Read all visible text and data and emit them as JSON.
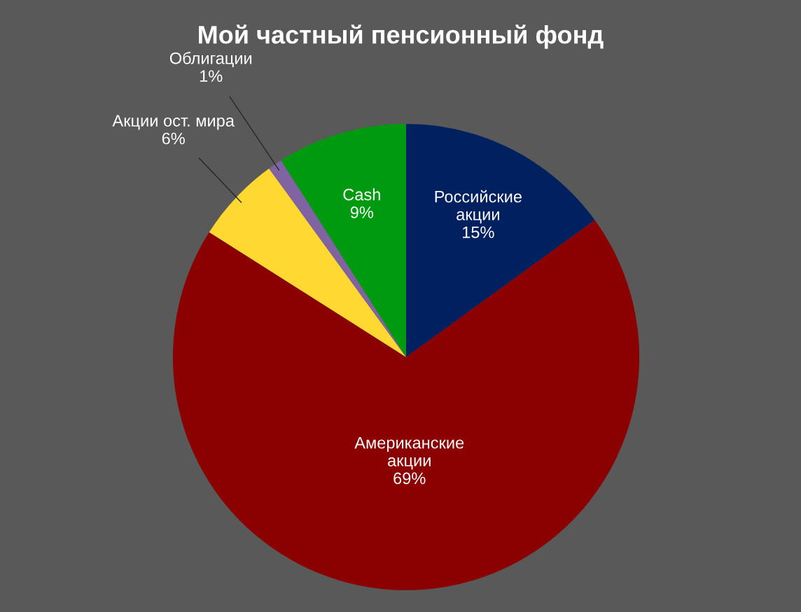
{
  "chart_data": {
    "type": "pie",
    "title": "Мой частный пенсионный фонд",
    "categories": [
      "Российские акции",
      "Американские акции",
      "Акции ост. мира",
      "Облигации",
      "Cash"
    ],
    "values": [
      15,
      69,
      6,
      1,
      9
    ],
    "colors": [
      "#002060",
      "#8b0000",
      "#ffd932",
      "#8064a2",
      "#009a10"
    ],
    "value_labels": [
      "15%",
      "69%",
      "6%",
      "1%",
      "9%"
    ],
    "legend": false
  }
}
